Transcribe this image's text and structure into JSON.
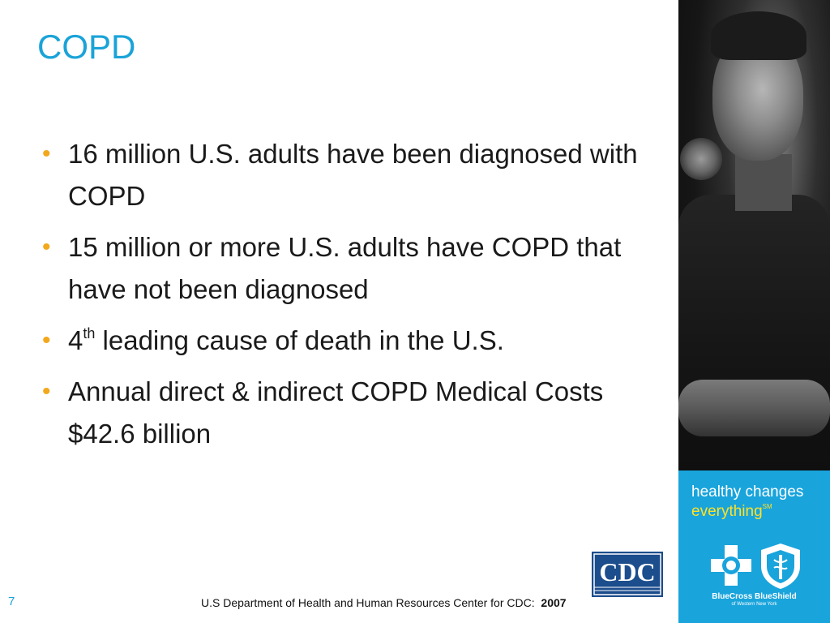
{
  "slide": {
    "title": "COPD",
    "bullets": [
      {
        "text": "16 million U.S. adults have been diagnosed with COPD"
      },
      {
        "text": "15 million or more U.S. adults have COPD that have not been diagnosed"
      },
      {
        "prefix": "4",
        "sup": "th",
        "text": " leading cause of death in the U.S."
      },
      {
        "text": "Annual direct & indirect COPD Medical Costs $42.6 billion"
      }
    ],
    "page_number": "7",
    "source_text": "U.S Department of Health and Human Resources Center for CDC:",
    "source_year": "2007"
  },
  "brand": {
    "tagline_line1": "healthy changes",
    "tagline_line2": "everything",
    "tagline_mark": "SM",
    "company": "BlueCross BlueShield",
    "region": "of Western New York"
  },
  "cdc_logo": {
    "text": "CDC"
  },
  "colors": {
    "title": "#1aa3d8",
    "bullet": "#f2a81d",
    "brand_panel": "#19a4dc",
    "tagline_accent": "#ffe227",
    "cdc_blue": "#1c4d8c"
  },
  "icons": {
    "photo": "man-portrait-photo",
    "cross": "bluecross-icon",
    "shield": "blueshield-icon"
  }
}
